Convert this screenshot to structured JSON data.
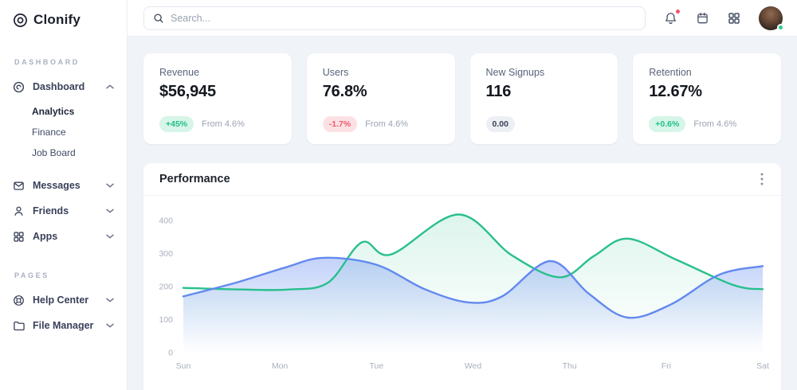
{
  "app_title": "Clonify",
  "theme": {
    "background": "#f0f3f8",
    "surface": "#ffffff",
    "positive_green": "#1fbf8b",
    "positive_bg": "#d7f5e8",
    "negative_red": "#ee5d6c",
    "negative_bg": "#fce1e4",
    "neutral_bg": "#eceff4",
    "series_green": "#29bf8c",
    "series_blue": "#6289ef",
    "alert_red": "#f4516c",
    "online_green": "#2ecc8e",
    "muted_text": "#9aa3b2"
  },
  "icons": {
    "logo": "concentric-circles",
    "dashboard": "disc",
    "messages": "envelope",
    "friends": "person",
    "apps": "grid-squares",
    "help_center": "life-buoy",
    "file_manager": "folder",
    "search": "magnifier",
    "notifications": "bell-with-red-dot",
    "calendar": "calendar",
    "launcher": "grid-squares",
    "panel_menu": "kebab-vertical",
    "expand": "chevron"
  },
  "sidebar": {
    "logo_text": "Clonify",
    "section_dashboard": "DASHBOARD",
    "section_pages": "PAGES",
    "items": {
      "dashboard": "Dashboard",
      "analytics": "Analytics",
      "finance": "Finance",
      "job_board": "Job Board",
      "messages": "Messages",
      "friends": "Friends",
      "apps": "Apps",
      "help_center": "Help Center",
      "file_manager": "File Manager"
    },
    "active_item": "Analytics",
    "expanded_item": "Dashboard"
  },
  "topbar": {
    "search_placeholder": "Search...",
    "notification_has_alert": true,
    "avatar_status": "online"
  },
  "stats": [
    {
      "title": "Revenue",
      "value": "$56,945",
      "badge": "+45%",
      "badge_type": "positive",
      "caption": "From 4.6%"
    },
    {
      "title": "Users",
      "value": "76.8%",
      "badge": "-1.7%",
      "badge_type": "negative",
      "caption": "From 4.6%"
    },
    {
      "title": "New Signups",
      "value": "116",
      "badge": "0.00",
      "badge_type": "neutral",
      "caption": ""
    },
    {
      "title": "Retention",
      "value": "12.67%",
      "badge": "+0.6%",
      "badge_type": "positive",
      "caption": "From 4.6%"
    }
  ],
  "performance": {
    "title": "Performance"
  },
  "chart_data": {
    "type": "area",
    "title": "Performance",
    "x_labels": [
      "Sun",
      "Mon",
      "Tue",
      "Wed",
      "Thu",
      "Fri",
      "Sat"
    ],
    "y_ticks": [
      0,
      100,
      200,
      300,
      400
    ],
    "ylim": [
      0,
      450
    ],
    "grid": false,
    "legend": "none",
    "curve": "smooth",
    "series": [
      {
        "name": "series-green",
        "color": "#29bf8c",
        "fill_from": "rgba(41,191,140,0.16)",
        "fill_to": "rgba(41,191,140,0)",
        "values_at_labels": [
          196,
          191,
          305,
          412,
          230,
          318,
          192
        ],
        "points": [
          [
            0,
            196
          ],
          [
            0.6,
            191
          ],
          [
            1.1,
            191
          ],
          [
            1.5,
            212
          ],
          [
            1.85,
            334
          ],
          [
            2.15,
            297
          ],
          [
            2.85,
            418
          ],
          [
            3.4,
            295
          ],
          [
            3.9,
            228
          ],
          [
            4.25,
            292
          ],
          [
            4.6,
            345
          ],
          [
            5.1,
            282
          ],
          [
            5.7,
            204
          ],
          [
            6,
            192
          ]
        ]
      },
      {
        "name": "series-blue",
        "color": "#6289ef",
        "fill_from": "rgba(98,137,239,0.38)",
        "fill_to": "rgba(98,137,239,0.02)",
        "values_at_labels": [
          170,
          255,
          266,
          150,
          230,
          142,
          262
        ],
        "points": [
          [
            0,
            170
          ],
          [
            0.55,
            212
          ],
          [
            1.05,
            257
          ],
          [
            1.45,
            287
          ],
          [
            2.0,
            266
          ],
          [
            2.5,
            192
          ],
          [
            2.95,
            152
          ],
          [
            3.3,
            170
          ],
          [
            3.8,
            277
          ],
          [
            4.2,
            178
          ],
          [
            4.6,
            106
          ],
          [
            5.05,
            146
          ],
          [
            5.55,
            236
          ],
          [
            6,
            262
          ]
        ]
      }
    ]
  }
}
